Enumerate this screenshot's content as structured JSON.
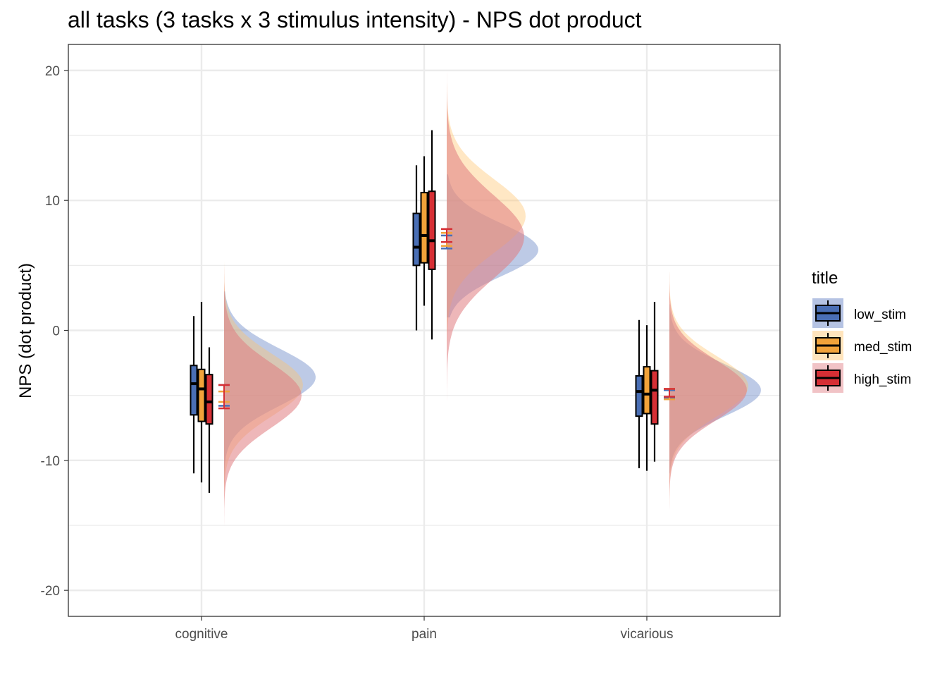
{
  "chart_data": {
    "type": "raincloud",
    "title": "all tasks  (3 tasks x 3 stimulus intensity) - NPS dot product",
    "xlabel": "",
    "ylabel": "NPS (dot product)",
    "ylim": [
      -22,
      22
    ],
    "yticks": [
      -20,
      -10,
      0,
      10,
      20
    ],
    "grid": true,
    "categories": [
      "cognitive",
      "pain",
      "vicarious"
    ],
    "legend": {
      "title": "title",
      "position": "right"
    },
    "series": [
      {
        "name": "low_stim",
        "color": "#4a6fb5",
        "fill_color": "#5a7bc0",
        "box": [
          {
            "min": -11.0,
            "q1": -6.5,
            "median": -4.1,
            "q3": -2.7,
            "max": 1.1
          },
          {
            "min": 0.0,
            "q1": 5.0,
            "median": 6.4,
            "q3": 9.0,
            "max": 12.7
          },
          {
            "min": -10.6,
            "q1": -6.6,
            "median": -4.7,
            "q3": -3.5,
            "max": 0.8
          }
        ],
        "mean": [
          -5.0,
          6.8,
          -4.9
        ],
        "ci": [
          [
            -5.8,
            -4.2
          ],
          [
            6.3,
            7.3
          ],
          [
            -5.2,
            -4.6
          ]
        ],
        "density": [
          {
            "lo": -12,
            "hi": 3,
            "mode": -3.6,
            "sd": 2.2
          },
          {
            "lo": 1,
            "hi": 12,
            "mode": 6.2,
            "sd": 2.0
          },
          {
            "lo": -11,
            "hi": 2,
            "mode": -4.6,
            "sd": 2.0
          }
        ]
      },
      {
        "name": "med_stim",
        "color": "#f2a33a",
        "fill_color": "#ffc46b",
        "box": [
          {
            "min": -11.7,
            "q1": -7.0,
            "median": -4.5,
            "q3": -3.0,
            "max": 2.2
          },
          {
            "min": 1.9,
            "q1": 5.2,
            "median": 7.3,
            "q3": 10.6,
            "max": 13.4
          },
          {
            "min": -10.8,
            "q1": -6.4,
            "median": -4.9,
            "q3": -2.8,
            "max": 0.4
          }
        ],
        "mean": [
          -5.1,
          7.0,
          -4.9
        ],
        "ci": [
          [
            -5.5,
            -4.7
          ],
          [
            6.5,
            7.5
          ],
          [
            -5.3,
            -4.5
          ]
        ],
        "density": [
          {
            "lo": -19.4,
            "hi": 6,
            "mode": -4.2,
            "sd": 2.4
          },
          {
            "lo": -2,
            "hi": 19,
            "mode": 8.8,
            "sd": 2.8
          },
          {
            "lo": -14.2,
            "hi": 4.5,
            "mode": -4.3,
            "sd": 2.3
          }
        ]
      },
      {
        "name": "high_stim",
        "color": "#d62f35",
        "fill_color": "#e07b80",
        "box": [
          {
            "min": -12.5,
            "q1": -7.2,
            "median": -5.5,
            "q3": -3.4,
            "max": -1.3
          },
          {
            "min": -0.7,
            "q1": 4.7,
            "median": 6.9,
            "q3": 10.7,
            "max": 15.4
          },
          {
            "min": -10.1,
            "q1": -7.2,
            "median": -4.6,
            "q3": -3.1,
            "max": 2.2
          }
        ],
        "mean": [
          -5.1,
          7.3,
          -4.8
        ],
        "ci": [
          [
            -6.0,
            -4.2
          ],
          [
            6.8,
            7.8
          ],
          [
            -5.1,
            -4.5
          ]
        ],
        "density": [
          {
            "lo": -18.6,
            "hi": 7.3,
            "mode": -5.0,
            "sd": 2.5
          },
          {
            "lo": -5.5,
            "hi": 20.3,
            "mode": 7.2,
            "sd": 3.2
          },
          {
            "lo": -13.8,
            "hi": 6,
            "mode": -4.6,
            "sd": 2.3
          }
        ]
      }
    ]
  }
}
